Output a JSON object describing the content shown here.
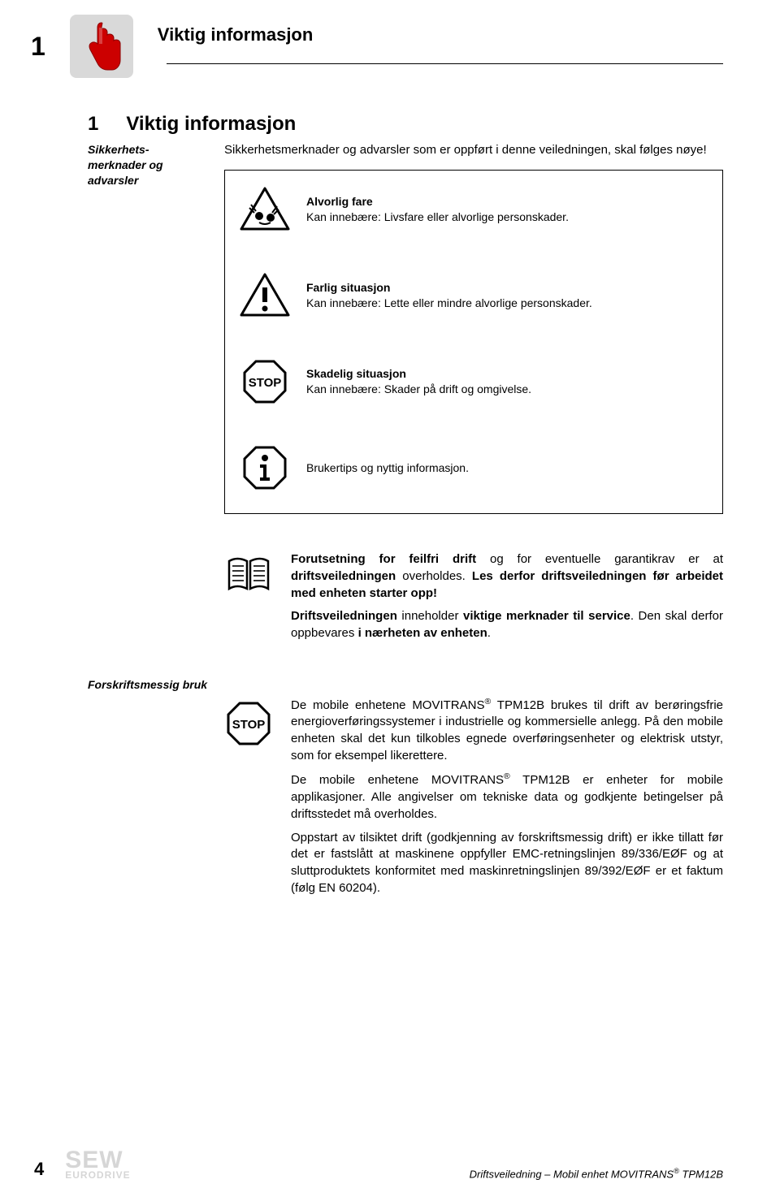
{
  "header": {
    "chapter_number": "1",
    "title": "Viktig informasjon"
  },
  "section": {
    "number": "1",
    "title": "Viktig informasjon"
  },
  "sidebar": {
    "safety_notes": "Sikkerhets-merknader og advarsler"
  },
  "intro": "Sikkerhetsmerknader og advarsler som er oppført i denne veiledningen, skal følges nøye!",
  "warnings": [
    {
      "title": "Alvorlig fare",
      "desc": "Kan innebære: Livsfare eller alvorlige personskader."
    },
    {
      "title": "Farlig situasjon",
      "desc": "Kan innebære: Lette eller mindre alvorlige personskader."
    },
    {
      "title": "Skadelig situasjon",
      "desc": "Kan innebære: Skader på drift og omgivelse."
    },
    {
      "title": "",
      "desc": "Brukertips og nyttig informasjon."
    }
  ],
  "manual_note": {
    "p1a": "Forutsetning for feilfri drift",
    "p1b": " og for eventuelle garantikrav er at ",
    "p1c": "driftsveiledningen",
    "p1d": " overholdes. ",
    "p1e": "Les derfor driftsveiledningen før arbeidet med enheten starter opp!",
    "p2a": "Driftsveiledningen",
    "p2b": " inneholder ",
    "p2c": "viktige merknader til service",
    "p2d": ". Den skal derfor oppbevares ",
    "p2e": "i nærheten av enheten",
    "p2f": "."
  },
  "usage": {
    "heading": "Forskriftsmessig bruk",
    "p1": "De mobile enhetene MOVITRANS® TPM12B brukes til drift av berøringsfrie energioverføringssystemer i industrielle og kommersielle anlegg. På den mobile enheten skal det kun tilkobles egnede overføringsenheter og elektrisk utstyr, som for eksempel likerettere.",
    "p2": "De mobile enhetene MOVITRANS® TPM12B er enheter for mobile applikasjoner. Alle angivelser om tekniske data og godkjente betingelser på driftsstedet må overholdes.",
    "p3": "Oppstart av tilsiktet drift (godkjenning av forskriftsmessig drift) er ikke tillatt før det er fastslått at maskinene oppfyller EMC-retningslinjen 89/336/EØF og at sluttproduktets konformitet med maskinretningslinjen 89/392/EØF er et faktum (følg EN 60204)."
  },
  "footer": {
    "page_number": "4",
    "logo_top": "SEW",
    "logo_bottom": "EURODRIVE",
    "doc_title": "Driftsveiledning – Mobil enhet MOVITRANS® TPM12B"
  },
  "icons": {
    "stop_label": "STOP"
  }
}
